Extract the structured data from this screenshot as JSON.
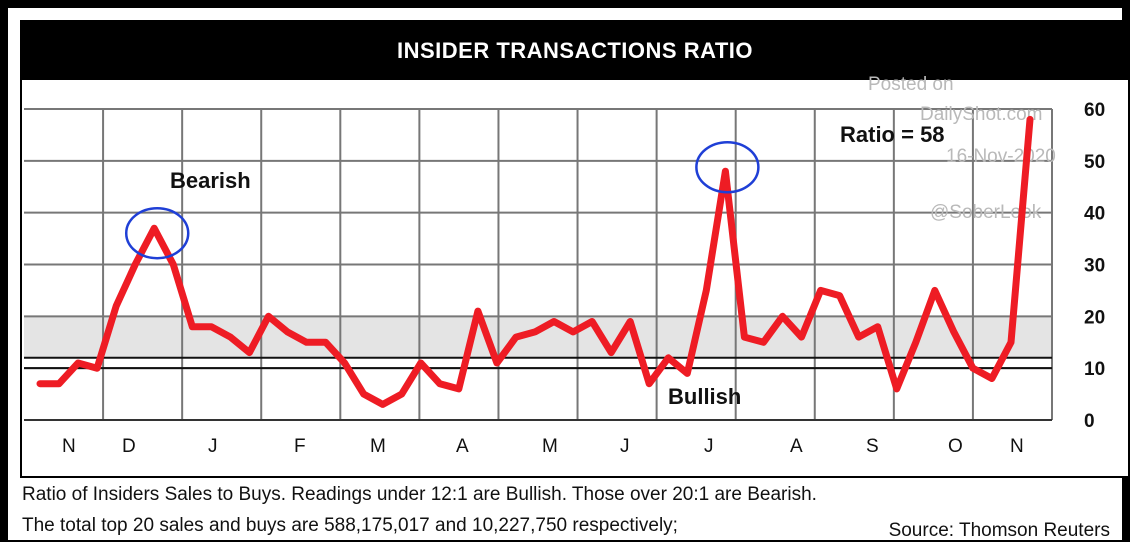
{
  "chart_data": {
    "type": "line",
    "title": "INSIDER TRANSACTIONS RATIO",
    "x_labels": [
      "N",
      "D",
      "J",
      "F",
      "M",
      "A",
      "M",
      "J",
      "J",
      "A",
      "S",
      "O",
      "N"
    ],
    "y_ticks": [
      0,
      10,
      20,
      30,
      40,
      50,
      60
    ],
    "ylim": [
      0,
      60
    ],
    "band": {
      "from": 12,
      "to": 20,
      "color": "#e4e4e4"
    },
    "reference_lines": [
      10,
      12
    ],
    "series": [
      {
        "color": "#ee1c24",
        "values": [
          7,
          7,
          11,
          10,
          22,
          30,
          37,
          30,
          18,
          18,
          16,
          13,
          20,
          17,
          15,
          15,
          11,
          5,
          3,
          5,
          11,
          7,
          6,
          21,
          11,
          16,
          17,
          19,
          17,
          19,
          13,
          19,
          7,
          12,
          9,
          25,
          48,
          16,
          15,
          20,
          16,
          25,
          24,
          16,
          18,
          6,
          15,
          25,
          17,
          10,
          8,
          15,
          58
        ]
      }
    ],
    "annotations": {
      "bearish": "Bearish",
      "bullish": "Bullish",
      "ratio_label": "Ratio = 58"
    }
  },
  "watermark": {
    "line1": "Posted on",
    "line2": "DailyShot.com",
    "line3": "16-Nov-2020",
    "line4": "@SoberLook"
  },
  "caption": {
    "line1": "Ratio of Insiders Sales to Buys. Readings under 12:1 are Bullish. Those over 20:1 are Bearish.",
    "line2": "The total top 20 sales and buys are 588,175,017 and 10,227,750 respectively;",
    "source": "Source: Thomson Reuters"
  },
  "colors": {
    "line": "#ee1c24",
    "circle": "#1f3fd6",
    "title_bg": "#000000"
  }
}
